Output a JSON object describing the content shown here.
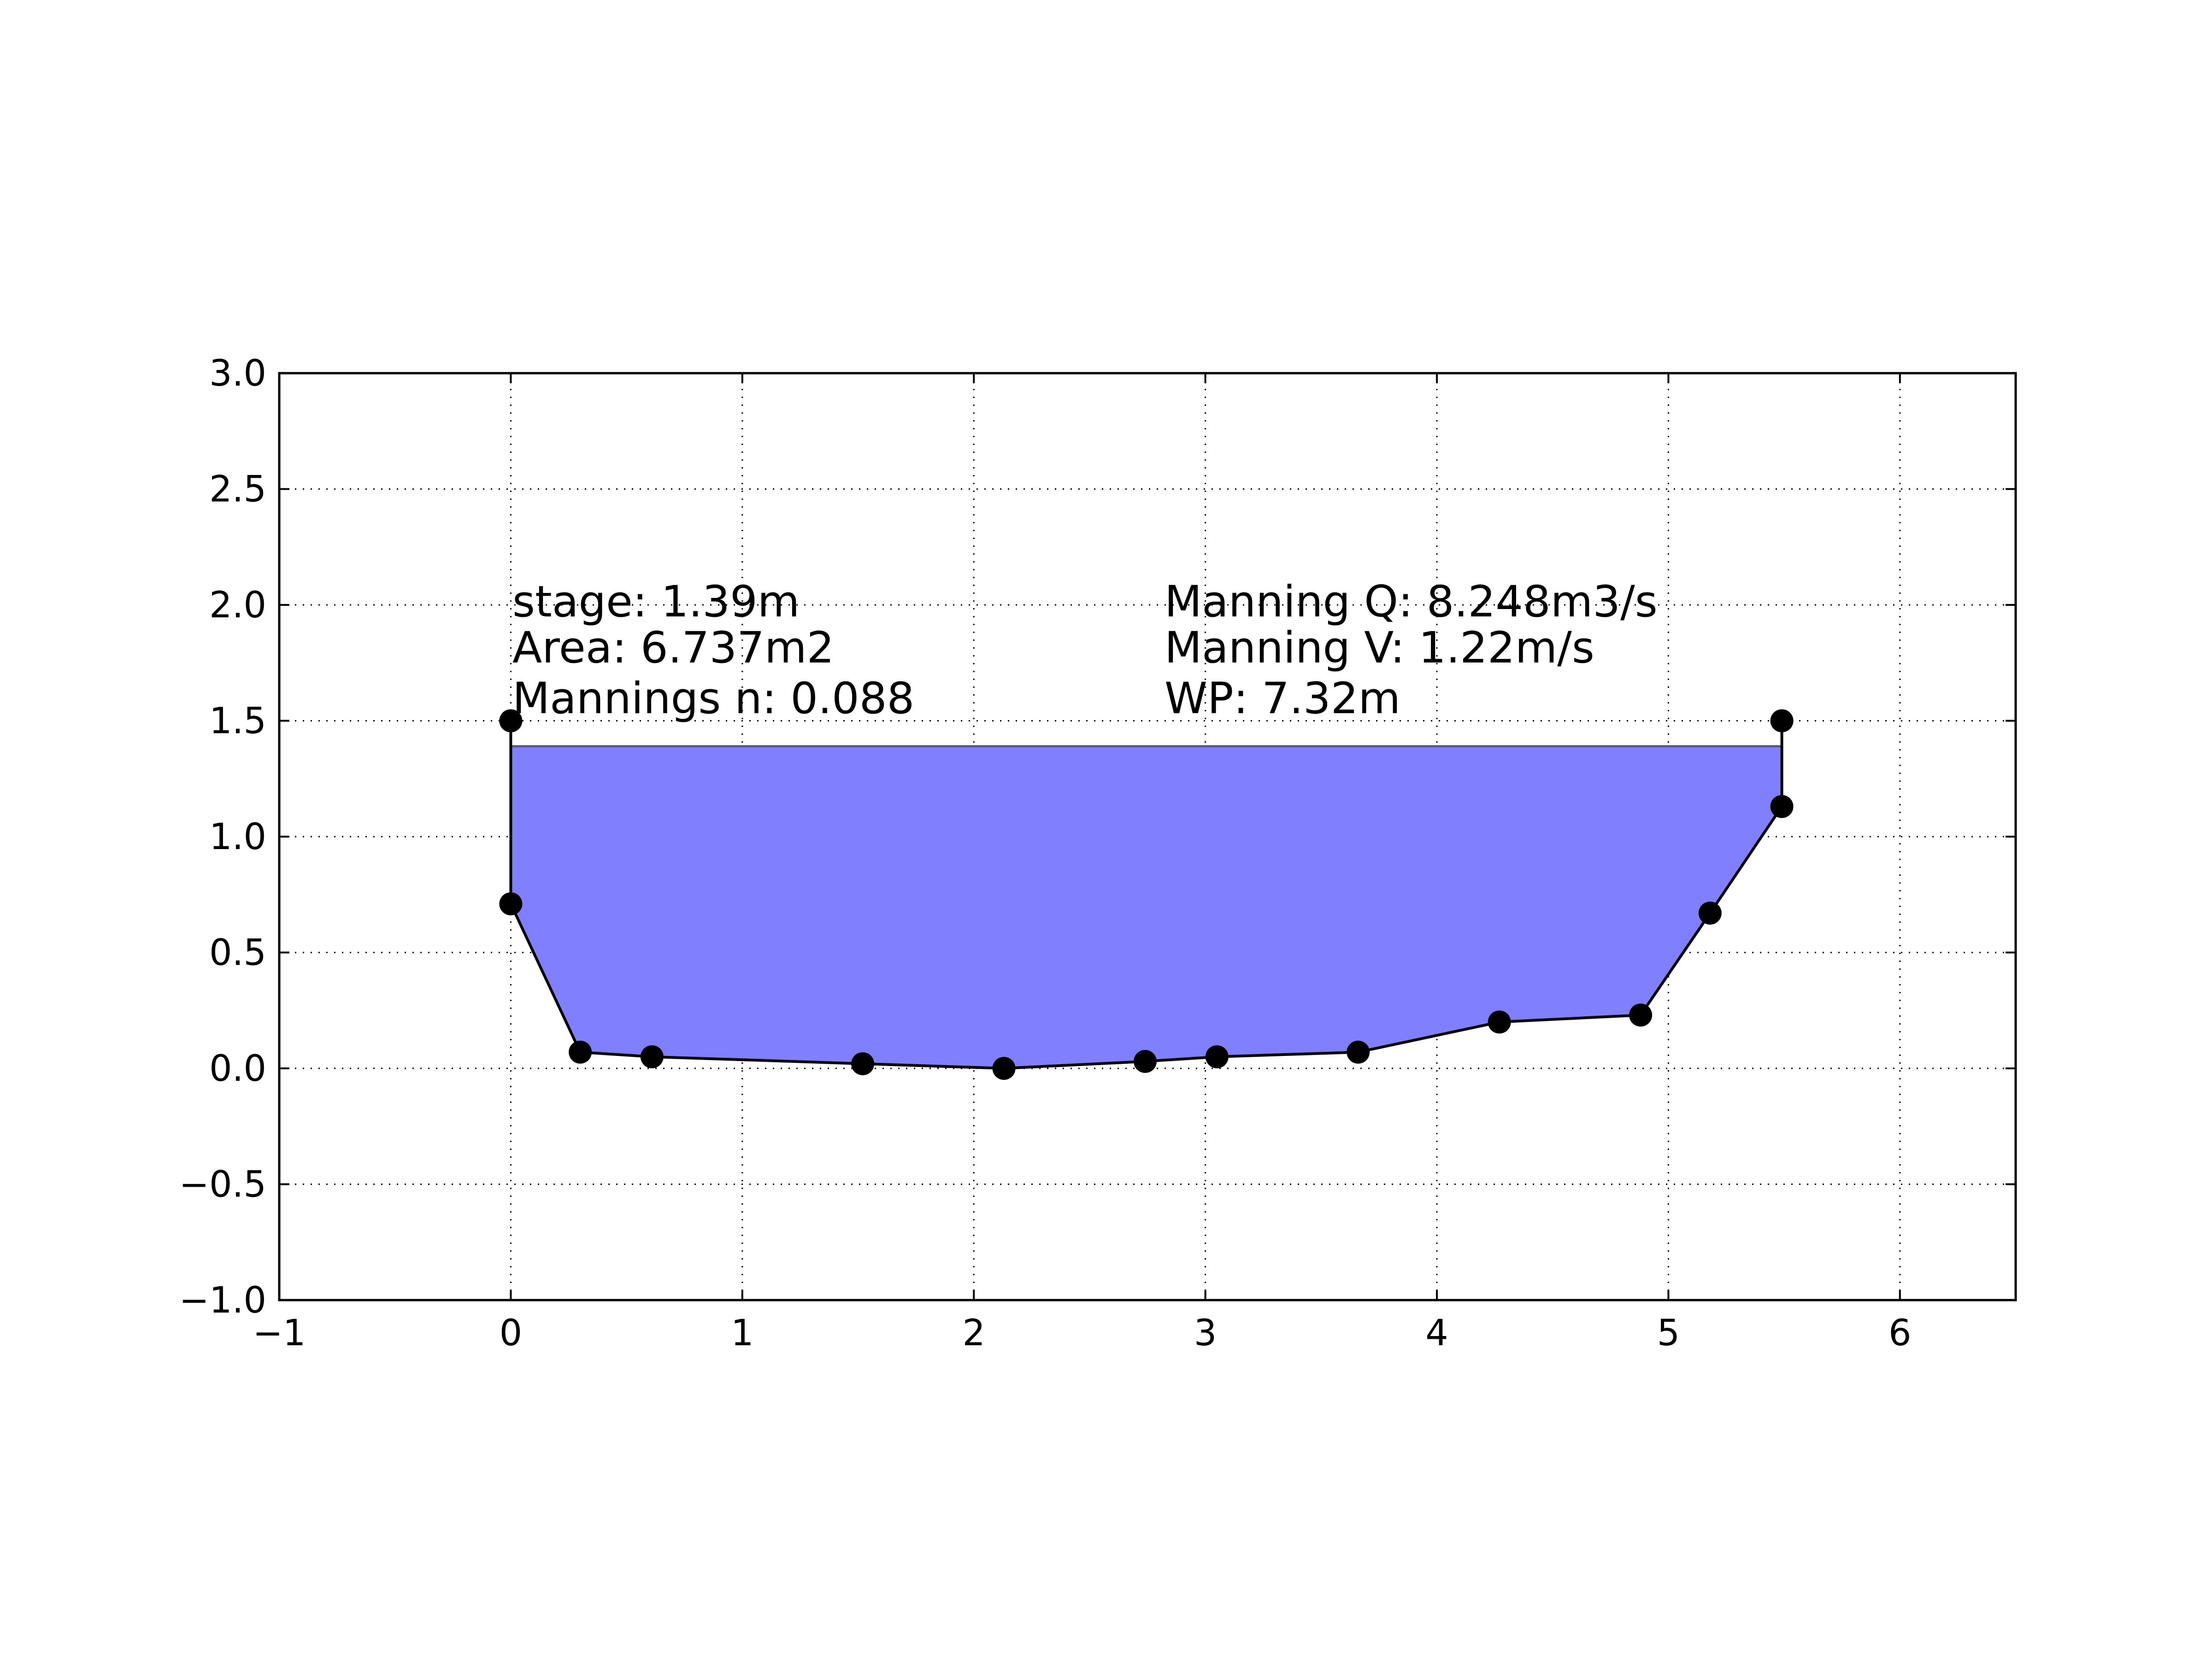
{
  "chart_data": {
    "type": "area",
    "title": "",
    "xlabel": "",
    "ylabel": "",
    "xlim": [
      -1,
      6.5
    ],
    "ylim": [
      -1.0,
      3.0
    ],
    "grid": true,
    "x_ticks": [
      -1,
      0,
      1,
      2,
      3,
      4,
      5,
      6
    ],
    "x_tick_labels": [
      "−1",
      "0",
      "1",
      "2",
      "3",
      "4",
      "5",
      "6"
    ],
    "y_ticks": [
      -1.0,
      -0.5,
      0.0,
      0.5,
      1.0,
      1.5,
      2.0,
      2.5,
      3.0
    ],
    "y_tick_labels": [
      "−1.0",
      "−0.5",
      "0.0",
      "0.5",
      "1.0",
      "1.5",
      "2.0",
      "2.5",
      "3.0"
    ],
    "profile": {
      "x": [
        0.0,
        0.0,
        0.3,
        0.61,
        1.52,
        2.13,
        2.74,
        3.05,
        3.66,
        4.27,
        4.88,
        5.18,
        5.49,
        5.49
      ],
      "y": [
        1.5,
        0.71,
        0.07,
        0.05,
        0.02,
        0.0,
        0.03,
        0.05,
        0.07,
        0.2,
        0.23,
        0.67,
        1.13,
        1.5
      ]
    },
    "water": {
      "stage": 1.39,
      "fill_color": "#8080ff",
      "line_color": "#5a5a78"
    },
    "marker_color": "#000000",
    "line_color": "#000000",
    "annotations_left": [
      "stage: 1.39m",
      "Area: 6.737m2",
      "Mannings n: 0.088"
    ],
    "annotations_right": [
      "Manning Q: 8.248m3/s",
      "Manning V: 1.22m/s",
      "WP: 7.32m"
    ]
  }
}
